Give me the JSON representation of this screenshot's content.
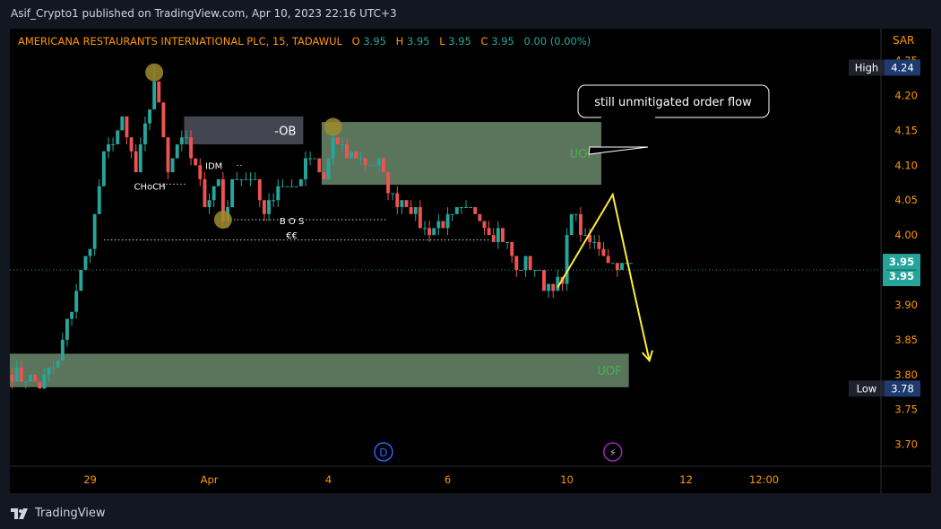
{
  "header": {
    "published_line": "Asif_Crypto1 published on TradingView.com, Apr 10, 2023 22:16 UTC+3"
  },
  "footer": {
    "brand": "TradingView",
    "logo_icon": "tradingview-logo-icon"
  },
  "colors": {
    "bull": "#26a69a",
    "bear": "#ef5350",
    "zone_fill": "#a5d6a7",
    "ob_fill": "#434651",
    "ohlc_label": "#ff9800",
    "ohlc_value": "#26a69a",
    "marker": "#9e8b2d",
    "arrow": "#ffeb3b",
    "price_axis_text": "#ff9800"
  },
  "chart_data": {
    "type": "candlestick",
    "title": "AMERICANA RESTAURANTS INTERNATIONAL PLC, 15, TADAWUL",
    "ohlc": {
      "o_label": "O",
      "o": "3.95",
      "h_label": "H",
      "h": "3.95",
      "l_label": "L",
      "l": "3.95",
      "c_label": "C",
      "c": "3.95",
      "change": "0.00 (0.00%)"
    },
    "currency": "SAR",
    "ylim": [
      3.67,
      4.27
    ],
    "y_ticks": [
      "4.25",
      "4.20",
      "4.15",
      "4.10",
      "4.05",
      "4.00",
      "3.95",
      "3.90",
      "3.85",
      "3.80",
      "3.75",
      "3.70"
    ],
    "x_ticks": [
      {
        "label": "29",
        "bar": 17
      },
      {
        "label": "Apr",
        "bar": 43
      },
      {
        "label": "4",
        "bar": 69
      },
      {
        "label": "6",
        "bar": 95
      },
      {
        "label": "10",
        "bar": 121
      },
      {
        "label": "12",
        "bar": 147
      },
      {
        "label": "12:00",
        "bar": 164
      }
    ],
    "total_slots": 190,
    "bars_shown": 136,
    "key_levels": [
      {
        "bar": 0,
        "price": 3.8
      },
      {
        "bar": 4,
        "price": 3.79
      },
      {
        "bar": 6,
        "price": 3.78
      },
      {
        "bar": 10,
        "price": 3.82
      },
      {
        "bar": 13,
        "price": 3.9
      },
      {
        "bar": 17,
        "price": 3.99
      },
      {
        "bar": 20,
        "price": 4.11
      },
      {
        "bar": 24,
        "price": 4.16
      },
      {
        "bar": 27,
        "price": 4.09
      },
      {
        "bar": 29,
        "price": 4.15
      },
      {
        "bar": 31,
        "price": 4.22
      },
      {
        "bar": 34,
        "price": 4.1
      },
      {
        "bar": 37,
        "price": 4.15
      },
      {
        "bar": 40,
        "price": 4.09
      },
      {
        "bar": 42,
        "price": 4.05
      },
      {
        "bar": 45,
        "price": 4.08
      },
      {
        "bar": 46,
        "price": 4.02
      },
      {
        "bar": 49,
        "price": 4.09
      },
      {
        "bar": 52,
        "price": 4.08
      },
      {
        "bar": 55,
        "price": 4.04
      },
      {
        "bar": 58,
        "price": 4.07
      },
      {
        "bar": 62,
        "price": 4.07
      },
      {
        "bar": 65,
        "price": 4.11
      },
      {
        "bar": 68,
        "price": 4.08
      },
      {
        "bar": 70,
        "price": 4.14
      },
      {
        "bar": 72,
        "price": 4.12
      },
      {
        "bar": 76,
        "price": 4.11
      },
      {
        "bar": 80,
        "price": 4.1
      },
      {
        "bar": 83,
        "price": 4.05
      },
      {
        "bar": 86,
        "price": 4.05
      },
      {
        "bar": 90,
        "price": 4.01
      },
      {
        "bar": 94,
        "price": 4.02
      },
      {
        "bar": 98,
        "price": 4.03
      },
      {
        "bar": 101,
        "price": 4.04
      },
      {
        "bar": 104,
        "price": 4.01
      },
      {
        "bar": 107,
        "price": 4.0
      },
      {
        "bar": 110,
        "price": 3.95
      },
      {
        "bar": 113,
        "price": 3.96
      },
      {
        "bar": 116,
        "price": 3.93
      },
      {
        "bar": 120,
        "price": 3.93
      },
      {
        "bar": 122,
        "price": 4.04
      },
      {
        "bar": 125,
        "price": 3.99
      },
      {
        "bar": 128,
        "price": 3.99
      },
      {
        "bar": 131,
        "price": 3.96
      },
      {
        "bar": 135,
        "price": 3.95
      }
    ],
    "current_price": {
      "value": 3.95,
      "labels": [
        "3.95",
        "3.95"
      ]
    },
    "high": {
      "label": "High",
      "value": "4.24",
      "price": 4.24
    },
    "low": {
      "label": "Low",
      "value": "3.78",
      "price": 3.78
    },
    "zones": [
      {
        "name": "uof-zone-upper",
        "label": "UOF",
        "bar_start": 68,
        "bar_end": 128,
        "top": 4.162,
        "bottom": 4.072,
        "fill": "#a5d6a7"
      },
      {
        "name": "uof-zone-lower",
        "label": "UOF",
        "bar_start": -0.5,
        "bar_end": 134,
        "top": 3.83,
        "bottom": 3.782,
        "fill": "#a5d6a7"
      },
      {
        "name": "ob-zone",
        "label": "-OB",
        "bar_start": 38,
        "bar_end": 63,
        "top": 4.17,
        "bottom": 4.13,
        "fill": "#434651"
      }
    ],
    "annotations": [
      {
        "name": "choch-label",
        "text": "CHoCH",
        "bar": 30,
        "price": 4.07
      },
      {
        "name": "idm-label",
        "text": "IDM",
        "bar": 44,
        "price": 4.1
      },
      {
        "name": "bos-label",
        "text": "B O S",
        "bar": 61,
        "price": 4.021
      },
      {
        "name": "ee-label",
        "text": "€€",
        "bar": 61,
        "price": 4.0
      },
      {
        "name": "callout-text",
        "text": "still unmitigated order flow"
      }
    ],
    "dotted_lines": [
      {
        "name": "choch-dotted-line",
        "bar_start": 32,
        "bar_end": 38,
        "price": 4.073
      },
      {
        "name": "idm-dotted-line",
        "bar_start": 49,
        "bar_end": 50,
        "price": 4.1
      },
      {
        "name": "bos-dotted-line",
        "bar_start": 46,
        "bar_end": 82,
        "price": 4.022
      },
      {
        "name": "choch-break-dotted-line",
        "bar_start": 20,
        "bar_end": 104,
        "price": 3.993
      }
    ],
    "markers": [
      {
        "name": "swing-high-marker",
        "bar": 31,
        "price": 4.233
      },
      {
        "name": "swing-low-marker",
        "bar": 46,
        "price": 4.022
      },
      {
        "name": "upper-high-marker",
        "bar": 70,
        "price": 4.155
      }
    ],
    "projection": [
      {
        "bar": 119,
        "price": 3.925
      },
      {
        "bar": 131,
        "price": 4.058
      },
      {
        "bar": 136,
        "price": 3.908
      },
      {
        "bar": 139,
        "price": 3.82
      }
    ],
    "events": [
      {
        "name": "dividend-icon",
        "letter": "D",
        "bar": 81,
        "color": "#2962ff"
      },
      {
        "name": "earnings-icon",
        "letter": "⚡",
        "bar": 131,
        "color": "#9c27b0"
      }
    ]
  }
}
